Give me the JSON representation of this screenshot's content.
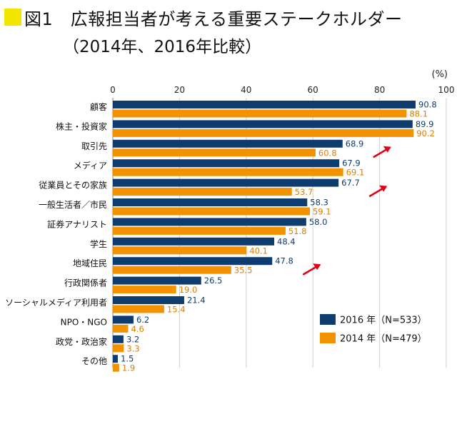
{
  "header": {
    "title": "図1　広報担当者が考える重要ステークホルダー",
    "subtitle": "（2014年、2016年比較）"
  },
  "chart_data": {
    "type": "bar",
    "orientation": "horizontal",
    "unit_label": "(%)",
    "xlim": [
      0,
      100
    ],
    "x_ticks": [
      0,
      20,
      40,
      60,
      80,
      100
    ],
    "grid": true,
    "legend_position": "bottom-right",
    "categories": [
      "顧客",
      "株主・投資家",
      "取引先",
      "メディア",
      "従業員とその家族",
      "一般生活者／市民",
      "証券アナリスト",
      "学生",
      "地域住民",
      "行政関係者",
      "ソーシャルメディア利用者",
      "NPO・NGO",
      "政党・政治家",
      "その他"
    ],
    "series": [
      {
        "name": "2016 年（N=533）",
        "color": "#0f3c6e",
        "label_color": "#0f3c6e",
        "values": [
          90.8,
          89.9,
          68.9,
          67.9,
          67.7,
          58.3,
          58.0,
          48.4,
          47.8,
          26.5,
          21.4,
          6.2,
          3.2,
          1.5
        ]
      },
      {
        "name": "2014 年（N=479）",
        "color": "#f39200",
        "label_color": "#e07d00",
        "values": [
          88.1,
          90.2,
          60.8,
          69.1,
          53.7,
          59.1,
          51.8,
          40.1,
          35.5,
          19.0,
          15.4,
          4.6,
          3.3,
          1.9
        ]
      }
    ],
    "value_labels_2016": [
      "90.8",
      "89.9",
      "68.9",
      "67.9",
      "67.7",
      "58.3",
      "58.0",
      "48.4",
      "47.8",
      "26.5",
      "21.4",
      "6.2",
      "3.2",
      "1.5"
    ],
    "value_labels_2014": [
      "88.1",
      "90.2",
      "60.8",
      "69.1",
      "53.7",
      "59.1",
      "51.8",
      "40.1",
      "35.5",
      "19.0",
      "15.4",
      "4.6",
      "3.3",
      "1.9"
    ],
    "annotations": {
      "arrow_color": "#e3001b",
      "arrow_categories": [
        "取引先",
        "従業員とその家族",
        "地域住民"
      ]
    }
  }
}
